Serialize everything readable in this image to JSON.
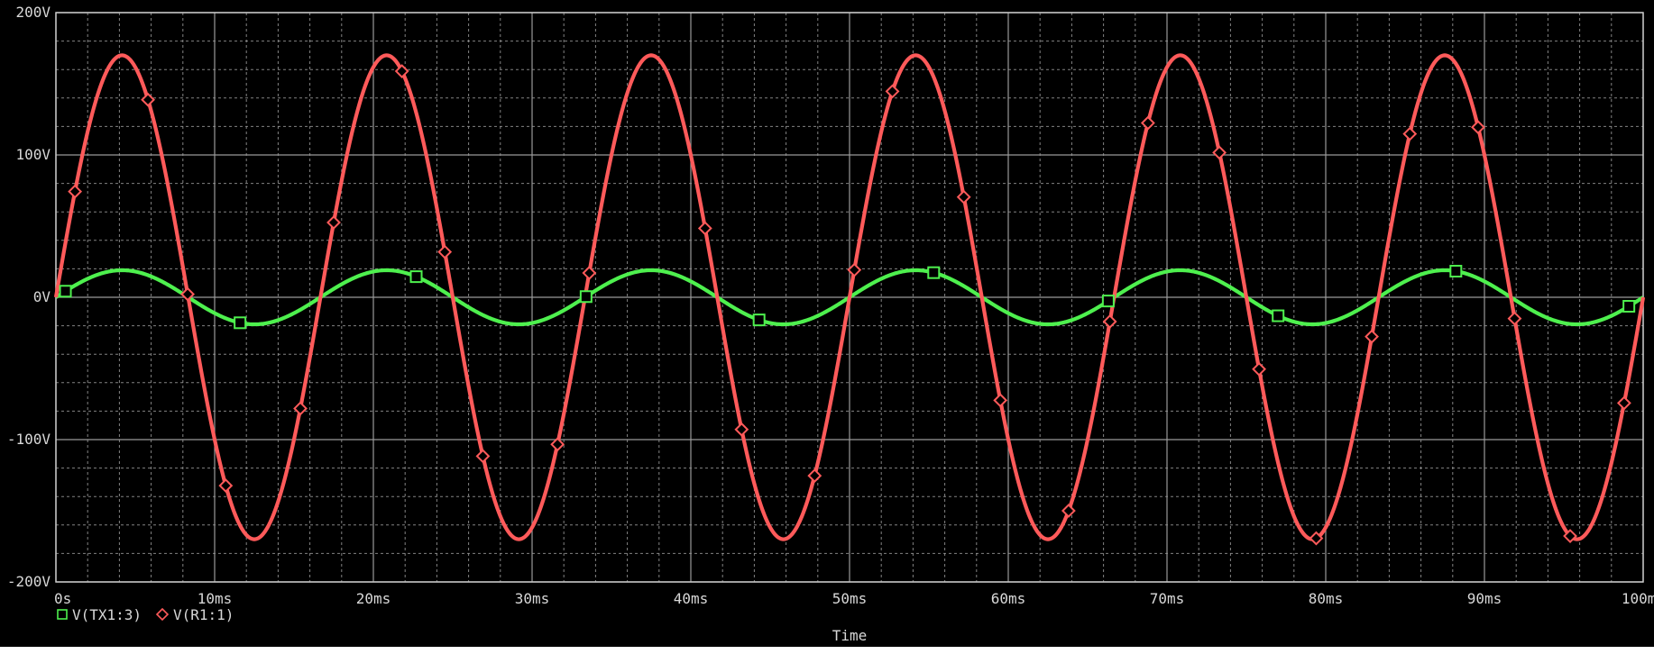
{
  "colors": {
    "background": "#000000",
    "grid": "#9a9a9a",
    "text": "#d8d8d8",
    "series_tx": "#4ef04e",
    "series_r1": "#ff5a5a"
  },
  "chart_data": {
    "type": "line",
    "xlabel": "Time",
    "ylabel": "",
    "xlim": [
      0,
      100
    ],
    "ylim": [
      -200,
      200
    ],
    "x_unit": "ms",
    "y_unit": "V",
    "x_ticks": [
      0,
      10,
      20,
      30,
      40,
      50,
      60,
      70,
      80,
      90,
      100
    ],
    "x_tick_labels": [
      "0s",
      "10ms",
      "20ms",
      "30ms",
      "40ms",
      "50ms",
      "60ms",
      "70ms",
      "80ms",
      "90ms",
      "100ms"
    ],
    "y_ticks": [
      200,
      100,
      0,
      -100,
      -200
    ],
    "y_tick_labels": [
      "200V",
      "100V",
      "0V",
      "-100V",
      "-200V"
    ],
    "grid": true,
    "legend_position": "bottom-left",
    "series": [
      {
        "name": "V(TX1:3)",
        "marker": "square",
        "color": "#4ef04e",
        "waveform": {
          "shape": "sine",
          "amplitude": 19,
          "frequency_hz": 60,
          "phase_deg": 0,
          "offset": 0
        },
        "marker_x": [
          0.6,
          11.6,
          22.7,
          33.4,
          44.3,
          55.3,
          66.3,
          77.0,
          88.2,
          99.1
        ]
      },
      {
        "name": "V(R1:1)",
        "marker": "diamond",
        "color": "#ff5a5a",
        "waveform": {
          "shape": "sine",
          "amplitude": 170,
          "frequency_hz": 60,
          "phase_deg": 0,
          "offset": 0
        },
        "marker_x": [
          1.2,
          5.8,
          8.3,
          10.7,
          15.4,
          17.5,
          21.8,
          24.5,
          26.9,
          31.6,
          33.6,
          40.9,
          43.2,
          47.8,
          50.3,
          52.7,
          57.2,
          59.5,
          63.8,
          66.4,
          68.8,
          73.3,
          75.8,
          79.4,
          82.9,
          85.3,
          89.6,
          91.9,
          95.4,
          98.8
        ]
      }
    ]
  },
  "legend": {
    "items": [
      {
        "label": "V(TX1:3)",
        "marker": "square"
      },
      {
        "label": "V(R1:1)",
        "marker": "diamond"
      }
    ]
  }
}
